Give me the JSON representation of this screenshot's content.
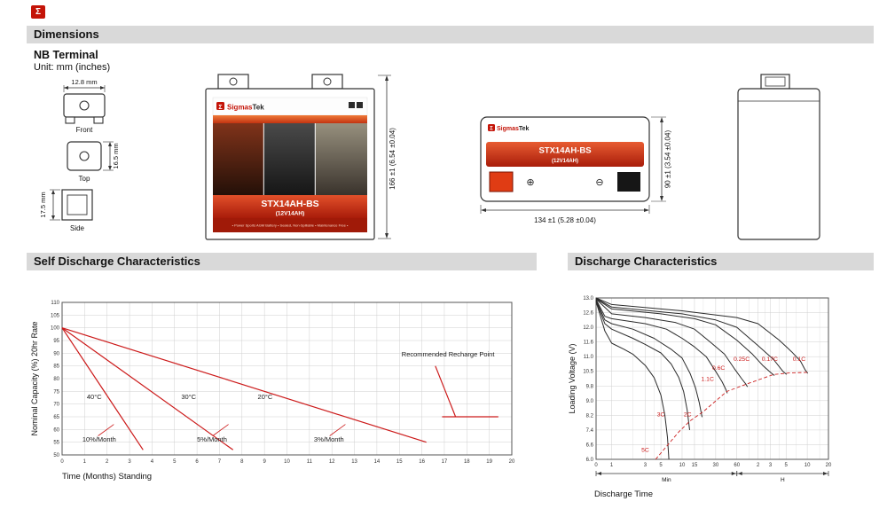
{
  "brand": {
    "sigma": "Σ",
    "name_part1": "Sigmas",
    "name_part2": "Tek"
  },
  "sections": {
    "dimensions": "Dimensions",
    "self_discharge": "Self Discharge Characteristics",
    "discharge": "Discharge Characteristics"
  },
  "terminal": {
    "title": "NB Terminal",
    "unit": "Unit: mm (inches)",
    "front_label": "Front",
    "top_label": "Top",
    "side_label": "Side",
    "front_width": "12.8 mm",
    "top_height": "16.5 mm",
    "side_height": "17.5 mm"
  },
  "product": {
    "model": "STX14AH-BS",
    "spec": "(12V14AH)",
    "tagline": "• Power Sports AGM Battery • Sealed, Non-Spillable • Maintenance Free •"
  },
  "dimensions": {
    "height": "166 ±1 (6.54 ±0.04)",
    "width": "134 ±1 (5.28 ±0.04)",
    "depth": "90 ±1 (3.54 ±0.04)"
  },
  "polarity": {
    "positive": "⊕",
    "negative": "⊖"
  },
  "chart_data": [
    {
      "id": "self_discharge",
      "type": "line",
      "title": "Self Discharge Characteristics",
      "xlabel": "Time (Months) Standing",
      "ylabel": "Nominal Capacity (%) 20hr Rate",
      "xlim": [
        0,
        20
      ],
      "ylim": [
        50,
        110
      ],
      "xticks": [
        0,
        1,
        2,
        3,
        4,
        5,
        6,
        7,
        8,
        9,
        10,
        11,
        12,
        13,
        14,
        15,
        16,
        17,
        18,
        19,
        20
      ],
      "yticks": [
        50,
        55,
        60,
        65,
        70,
        75,
        80,
        85,
        90,
        95,
        100,
        105,
        110
      ],
      "grid": true,
      "legend_position": "none",
      "line_color": "#cc1a1a",
      "series": [
        {
          "name": "40C",
          "label": "40°C",
          "points": [
            [
              0,
              100
            ],
            [
              3.6,
              52
            ]
          ]
        },
        {
          "name": "30C",
          "label": "30°C",
          "points": [
            [
              0,
              100
            ],
            [
              7.6,
              52
            ]
          ]
        },
        {
          "name": "20C",
          "label": "20°C",
          "points": [
            [
              0,
              100
            ],
            [
              16.2,
              55
            ]
          ]
        },
        {
          "name": "recharge-drop",
          "points": [
            [
              16.6,
              85
            ],
            [
              17.5,
              65
            ]
          ]
        },
        {
          "name": "recharge-level",
          "points": [
            [
              16.9,
              65
            ],
            [
              19.4,
              65
            ]
          ]
        },
        {
          "name": "leader-40",
          "points": [
            [
              1.6,
              57.5
            ],
            [
              2.3,
              62
            ]
          ],
          "width": 0.8
        },
        {
          "name": "leader-30",
          "points": [
            [
              6.7,
              57.5
            ],
            [
              7.4,
              62
            ]
          ],
          "width": 0.8
        },
        {
          "name": "leader-20",
          "points": [
            [
              11.9,
              57.5
            ],
            [
              12.6,
              62
            ]
          ],
          "width": 0.8
        }
      ],
      "annotations": [
        {
          "text": "40°C",
          "x": 1.1,
          "y": 72
        },
        {
          "text": "30°C",
          "x": 5.3,
          "y": 72
        },
        {
          "text": "20°C",
          "x": 8.7,
          "y": 72
        },
        {
          "text": "10%/Month",
          "x": 0.9,
          "y": 55.3
        },
        {
          "text": "5%/Month",
          "x": 6.0,
          "y": 55.3
        },
        {
          "text": "3%/Month",
          "x": 11.2,
          "y": 55.3
        },
        {
          "text": "Recommended Recharge Point",
          "x": 15.1,
          "y": 88.8
        }
      ]
    },
    {
      "id": "discharge",
      "type": "line",
      "title": "Discharge Characteristics",
      "xlabel": "Discharge Time",
      "ylabel": "Loading Voltage (V)",
      "x_scale": "log (minutes)",
      "xlim": [
        0.6,
        1200
      ],
      "xticks": [
        {
          "t": 0.6,
          "label": "0"
        },
        {
          "t": 1,
          "label": "1"
        },
        {
          "t": 3,
          "label": "3"
        },
        {
          "t": 5,
          "label": "5"
        },
        {
          "t": 10,
          "label": "10"
        },
        {
          "t": 15,
          "label": "15"
        },
        {
          "t": 30,
          "label": "30"
        },
        {
          "t": 60,
          "label": "60"
        },
        {
          "t": 120,
          "label": "2"
        },
        {
          "t": 180,
          "label": "3"
        },
        {
          "t": 300,
          "label": "5"
        },
        {
          "t": 600,
          "label": "10"
        },
        {
          "t": 1200,
          "label": "20"
        }
      ],
      "minor_grid": [
        2,
        4,
        20,
        40,
        90,
        150,
        240,
        420,
        900
      ],
      "yticks": [
        "13.0",
        "12.6",
        "12.0",
        "11.6",
        "11.0",
        "10.5",
        "9.8",
        "9.0",
        "8.2",
        "7.4",
        "6.6",
        "6.0"
      ],
      "unit_brackets": [
        {
          "label": "Min",
          "from": 0.6,
          "to": 60
        },
        {
          "label": "H",
          "from": 60,
          "to": 1200
        }
      ],
      "grid": true,
      "curve_color": "#2b2b2b",
      "series": [
        {
          "name": "5C",
          "label": "5C",
          "points": [
            [
              0.6,
              12.9
            ],
            [
              0.8,
              11.9
            ],
            [
              1,
              11.55
            ],
            [
              1.5,
              11.3
            ],
            [
              2,
              11.1
            ],
            [
              3,
              10.7
            ],
            [
              4,
              10.2
            ],
            [
              5,
              9.3
            ],
            [
              5.7,
              8.2
            ],
            [
              6.2,
              7.0
            ],
            [
              6.5,
              6.0
            ]
          ]
        },
        {
          "name": "3C",
          "label": "3C",
          "points": [
            [
              0.6,
              12.92
            ],
            [
              0.8,
              12.15
            ],
            [
              1,
              11.95
            ],
            [
              2,
              11.7
            ],
            [
              3,
              11.5
            ],
            [
              5,
              11.15
            ],
            [
              7,
              10.75
            ],
            [
              9,
              10.2
            ],
            [
              10.5,
              9.5
            ],
            [
              11.8,
              8.5
            ],
            [
              12.8,
              7.4
            ]
          ]
        },
        {
          "name": "2C",
          "label": "2C",
          "points": [
            [
              0.6,
              12.94
            ],
            [
              0.8,
              12.3
            ],
            [
              1,
              12.15
            ],
            [
              2,
              11.95
            ],
            [
              4,
              11.7
            ],
            [
              7,
              11.3
            ],
            [
              10,
              10.95
            ],
            [
              13,
              10.4
            ],
            [
              15.5,
              9.7
            ],
            [
              17.5,
              8.9
            ],
            [
              19.2,
              8.1
            ]
          ]
        },
        {
          "name": "1.1C",
          "label": "1.1C",
          "points": [
            [
              0.6,
              12.96
            ],
            [
              0.8,
              12.45
            ],
            [
              1,
              12.35
            ],
            [
              3,
              12.15
            ],
            [
              6,
              11.95
            ],
            [
              10,
              11.7
            ],
            [
              15,
              11.4
            ],
            [
              22,
              11.0
            ],
            [
              30,
              10.5
            ],
            [
              37,
              10.0
            ],
            [
              42,
              9.6
            ],
            [
              44,
              9.4
            ]
          ]
        },
        {
          "name": "0.6C",
          "label": "0.6C",
          "points": [
            [
              0.6,
              12.97
            ],
            [
              1,
              12.55
            ],
            [
              3,
              12.4
            ],
            [
              8,
              12.2
            ],
            [
              15,
              11.95
            ],
            [
              25,
              11.6
            ],
            [
              40,
              11.1
            ],
            [
              55,
              10.6
            ],
            [
              70,
              10.15
            ],
            [
              80,
              9.9
            ],
            [
              85,
              9.75
            ]
          ]
        },
        {
          "name": "0.25C",
          "label": "0.25C",
          "points": [
            [
              0.6,
              12.98
            ],
            [
              1,
              12.7
            ],
            [
              5,
              12.55
            ],
            [
              15,
              12.35
            ],
            [
              30,
              12.1
            ],
            [
              60,
              11.65
            ],
            [
              100,
              11.1
            ],
            [
              140,
              10.7
            ],
            [
              180,
              10.45
            ],
            [
              205,
              10.3
            ]
          ]
        },
        {
          "name": "0.17C",
          "label": "0.17C",
          "points": [
            [
              0.6,
              12.99
            ],
            [
              1,
              12.75
            ],
            [
              10,
              12.55
            ],
            [
              30,
              12.3
            ],
            [
              60,
              12.0
            ],
            [
              120,
              11.45
            ],
            [
              200,
              10.9
            ],
            [
              270,
              10.5
            ],
            [
              305,
              10.35
            ]
          ]
        },
        {
          "name": "0.1C",
          "label": "0.1C",
          "points": [
            [
              0.6,
              13.0
            ],
            [
              1,
              12.82
            ],
            [
              10,
              12.65
            ],
            [
              60,
              12.4
            ],
            [
              120,
              12.15
            ],
            [
              240,
              11.65
            ],
            [
              360,
              11.2
            ],
            [
              480,
              10.85
            ],
            [
              560,
              10.55
            ],
            [
              610,
              10.4
            ]
          ]
        }
      ],
      "cutoff_line": {
        "name": "final-voltage-dashed",
        "color": "#cc2222",
        "dash": "4 2.5",
        "points": [
          [
            4.2,
            6.0
          ],
          [
            9,
            7.3
          ],
          [
            13,
            7.9
          ],
          [
            20,
            8.4
          ],
          [
            43,
            9.5
          ],
          [
            84,
            9.9
          ],
          [
            200,
            10.35
          ],
          [
            330,
            10.42
          ],
          [
            600,
            10.45
          ]
        ]
      },
      "annotations": [
        {
          "text": "5C",
          "x": 3.0,
          "y": 6.3
        },
        {
          "text": "3C",
          "x": 5.0,
          "y": 8.15
        },
        {
          "text": "2C",
          "x": 12,
          "y": 8.15
        },
        {
          "text": "1.1C",
          "x": 23,
          "y": 10.05
        },
        {
          "text": "0.6C",
          "x": 33,
          "y": 10.55
        },
        {
          "text": "0.25C",
          "x": 70,
          "y": 10.85
        },
        {
          "text": "0.17C",
          "x": 176,
          "y": 10.85
        },
        {
          "text": "0.1C",
          "x": 460,
          "y": 10.85
        }
      ]
    }
  ]
}
